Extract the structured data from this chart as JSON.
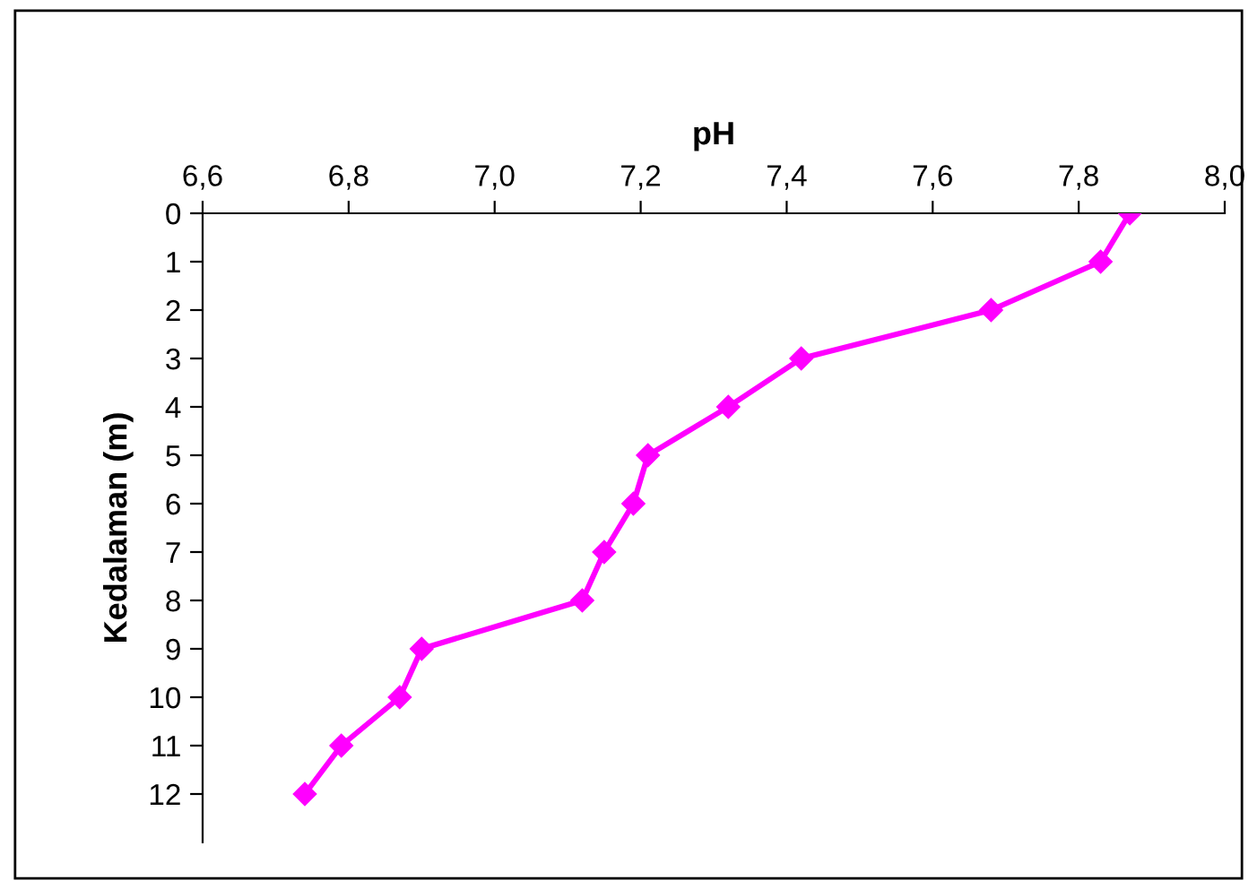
{
  "chart_data": {
    "type": "line",
    "xlabel": "pH",
    "ylabel": "Kedalaman (m)",
    "x": [
      7.87,
      7.83,
      7.68,
      7.42,
      7.32,
      7.21,
      7.19,
      7.15,
      7.12,
      6.9,
      6.87,
      6.79,
      6.74
    ],
    "series": [
      {
        "color": "#ff00ff",
        "values": [
          0,
          1,
          2,
          3,
          4,
          5,
          6,
          7,
          8,
          9,
          10,
          11,
          12
        ]
      }
    ],
    "xlim": [
      6.6,
      8.0
    ],
    "xticks": [
      {
        "value": 6.6,
        "label": "6,6"
      },
      {
        "value": 6.8,
        "label": "6,8"
      },
      {
        "value": 7.0,
        "label": "7,0"
      },
      {
        "value": 7.2,
        "label": "7,2"
      },
      {
        "value": 7.4,
        "label": "7,4"
      },
      {
        "value": 7.6,
        "label": "7,6"
      },
      {
        "value": 7.8,
        "label": "7,8"
      },
      {
        "value": 8.0,
        "label": "8,0"
      }
    ],
    "ylim": [
      13,
      0
    ],
    "yticks": [
      0,
      1,
      2,
      3,
      4,
      5,
      6,
      7,
      8,
      9,
      10,
      11,
      12
    ],
    "marker": "diamond",
    "line_style": "solid",
    "grid": false,
    "legend": false
  }
}
